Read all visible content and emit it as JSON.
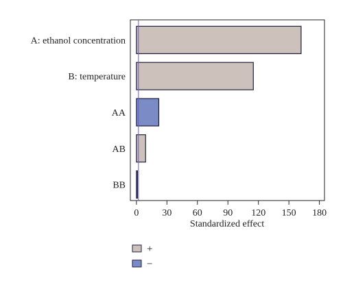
{
  "chart_data": {
    "type": "bar",
    "orientation": "horizontal",
    "categories": [
      "A: ethanol concentration",
      "B: temperature",
      "AA",
      "AB",
      "BB"
    ],
    "values": [
      162,
      115,
      22,
      9,
      1
    ],
    "signs": [
      "+",
      "+",
      "−",
      "+",
      "−"
    ],
    "xlabel": "Standardized effect",
    "ylabel": "",
    "xlim": [
      -6,
      185
    ],
    "xticks": [
      0,
      30,
      60,
      90,
      120,
      150,
      180
    ],
    "reference_line": 2,
    "grid": false,
    "legend": {
      "placement": "bottom-left",
      "entries": [
        {
          "label": "+",
          "color": "#cdc1bc"
        },
        {
          "label": "−",
          "color": "#7b8bc5"
        }
      ]
    }
  }
}
